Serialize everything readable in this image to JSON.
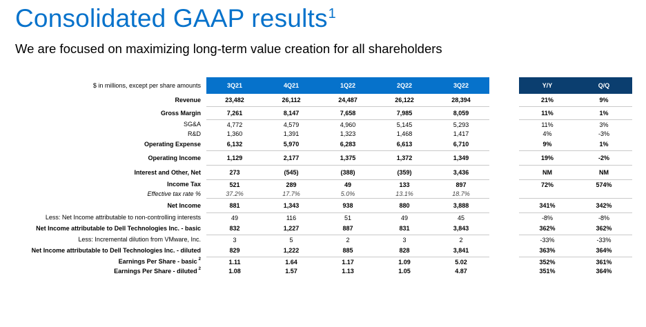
{
  "header": {
    "title": "Consolidated GAAP results",
    "title_footnote": "1",
    "subtitle": "We are focused on maximizing long-term value creation for all shareholders"
  },
  "table": {
    "units_label": "$ in millions, except per share amounts",
    "quarters": [
      "3Q21",
      "4Q21",
      "1Q22",
      "2Q22",
      "3Q22"
    ],
    "changes": [
      "Y/Y",
      "Q/Q"
    ],
    "rows": {
      "revenue": {
        "label": "Revenue",
        "q": [
          "23,482",
          "26,112",
          "24,487",
          "26,122",
          "28,394"
        ],
        "c": [
          "21%",
          "9%"
        ]
      },
      "gross_margin": {
        "label": "Gross Margin",
        "q": [
          "7,261",
          "8,147",
          "7,658",
          "7,985",
          "8,059"
        ],
        "c": [
          "11%",
          "1%"
        ]
      },
      "sga": {
        "label": "SG&A",
        "q": [
          "4,772",
          "4,579",
          "4,960",
          "5,145",
          "5,293"
        ],
        "c": [
          "11%",
          "3%"
        ]
      },
      "rd": {
        "label": "R&D",
        "q": [
          "1,360",
          "1,391",
          "1,323",
          "1,468",
          "1,417"
        ],
        "c": [
          "4%",
          "-3%"
        ]
      },
      "opex": {
        "label": "Operating Expense",
        "q": [
          "6,132",
          "5,970",
          "6,283",
          "6,613",
          "6,710"
        ],
        "c": [
          "9%",
          "1%"
        ]
      },
      "op_income": {
        "label": "Operating Income",
        "q": [
          "1,129",
          "2,177",
          "1,375",
          "1,372",
          "1,349"
        ],
        "c": [
          "19%",
          "-2%"
        ]
      },
      "interest": {
        "label": "Interest and Other, Net",
        "q": [
          "273",
          "(545)",
          "(388)",
          "(359)",
          "3,436"
        ],
        "c": [
          "NM",
          "NM"
        ]
      },
      "income_tax": {
        "label": "Income Tax",
        "q": [
          "521",
          "289",
          "49",
          "133",
          "897"
        ],
        "c": [
          "72%",
          "574%"
        ]
      },
      "eff_tax": {
        "label": "Effective tax rate %",
        "q": [
          "37.2%",
          "17.7%",
          "5.0%",
          "13.1%",
          "18.7%"
        ],
        "c": [
          "",
          ""
        ]
      },
      "net_income": {
        "label": "Net Income",
        "q": [
          "881",
          "1,343",
          "938",
          "880",
          "3,888"
        ],
        "c": [
          "341%",
          "342%"
        ]
      },
      "nci": {
        "label": "Less: Net Income attributable to non-controlling interests",
        "q": [
          "49",
          "116",
          "51",
          "49",
          "45"
        ],
        "c": [
          "-8%",
          "-8%"
        ]
      },
      "ni_basic": {
        "label": "Net Income attributable to Dell Technologies Inc. - basic",
        "q": [
          "832",
          "1,227",
          "887",
          "831",
          "3,843"
        ],
        "c": [
          "362%",
          "362%"
        ]
      },
      "vmw": {
        "label": "Less: Incremental dilution from VMware, Inc.",
        "q": [
          "3",
          "5",
          "2",
          "3",
          "2"
        ],
        "c": [
          "-33%",
          "-33%"
        ]
      },
      "ni_diluted": {
        "label": "Net Income attributable to Dell Technologies Inc. - diluted",
        "q": [
          "829",
          "1,222",
          "885",
          "828",
          "3,841"
        ],
        "c": [
          "363%",
          "364%"
        ]
      },
      "eps_basic": {
        "label": "Earnings Per Share - basic",
        "footnote": "2",
        "q": [
          "1.11",
          "1.64",
          "1.17",
          "1.09",
          "5.02"
        ],
        "c": [
          "352%",
          "361%"
        ]
      },
      "eps_diluted": {
        "label": "Earnings Per Share - diluted",
        "footnote": "2",
        "q": [
          "1.08",
          "1.57",
          "1.13",
          "1.05",
          "4.87"
        ],
        "c": [
          "351%",
          "364%"
        ]
      }
    }
  }
}
